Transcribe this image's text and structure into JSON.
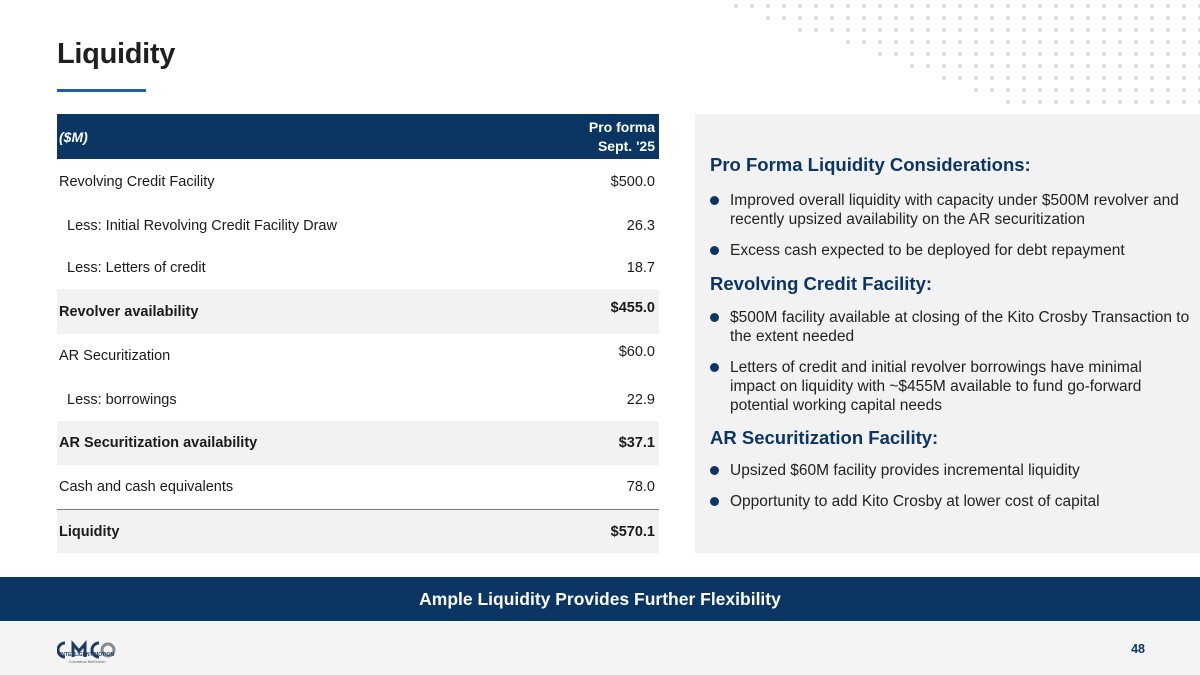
{
  "title": "Liquidity",
  "table": {
    "label_header": "($M)",
    "col_header_line1": "Pro forma",
    "col_header_line2": "Sept. '25",
    "rows": [
      {
        "label": "Revolving Credit Facility",
        "value": "$500.0"
      },
      {
        "label": "Less: Initial Revolving Credit Facility Draw",
        "value": "26.3"
      },
      {
        "label": "Less: Letters of credit",
        "value": "18.7"
      },
      {
        "label": "Revolver availability",
        "value": "$455.0"
      },
      {
        "label": "AR Securitization",
        "value": "$60.0"
      },
      {
        "label": "Less: borrowings",
        "value": "22.9"
      },
      {
        "label": "AR Securitization availability",
        "value": "$37.1"
      },
      {
        "label": "Cash and cash equivalents",
        "value": "78.0"
      },
      {
        "label": "Liquidity",
        "value": "$570.1"
      }
    ]
  },
  "panel": {
    "sections": [
      {
        "heading": "Pro Forma Liquidity Considerations:",
        "bullets": [
          "Improved overall liquidity with capacity under $500M revolver and recently upsized availability on the AR securitization",
          "Excess cash expected to be deployed for debt repayment"
        ]
      },
      {
        "heading": "Revolving Credit Facility:",
        "bullets": [
          "$500M facility available at closing of the Kito Crosby Transaction to the extent needed",
          "Letters of credit and initial revolver borrowings have minimal impact on liquidity with ~$455M available to fund go-forward potential working capital needs"
        ]
      },
      {
        "heading": "AR Securitization Facility:",
        "bullets": [
          "Upsized $60M facility provides incremental liquidity",
          "Opportunity to add Kito Crosby at lower cost of capital"
        ]
      }
    ]
  },
  "banner": "Ample Liquidity Provides Further Flexibility",
  "logo": {
    "mark": "CMCO",
    "tagline": "INTELLIGENT MOTION",
    "sub": "Columbus McKinnon"
  },
  "page_number": "48",
  "colors": {
    "navy": "#0b3563",
    "accent": "#1f5fa3",
    "shade": "#f2f2f2"
  }
}
